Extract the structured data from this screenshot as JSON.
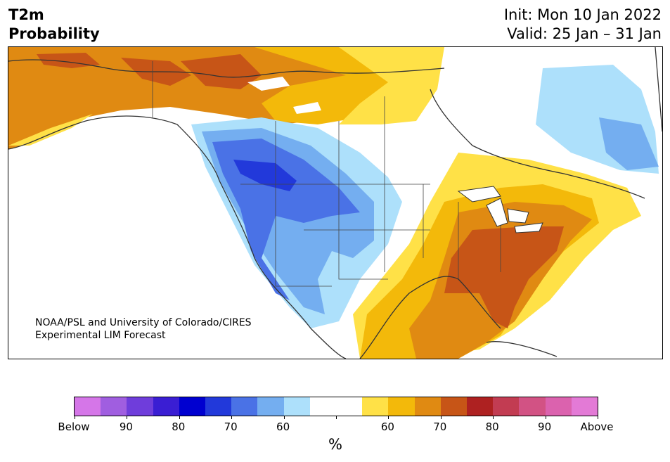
{
  "header": {
    "title_line1": "T2m",
    "title_line2": "Probability",
    "init": "Init: Mon 10 Jan 2022",
    "valid": "Valid: 25 Jan – 31 Jan"
  },
  "credit": {
    "line1": "NOAA/PSL and University of Colorado/CIRES",
    "line2": "Experimental LIM Forecast"
  },
  "colorbar": {
    "unit": "%",
    "colors": [
      "#d576e8",
      "#a05ee0",
      "#6f3ddb",
      "#3a1ed3",
      "#0000d0",
      "#2239da",
      "#4a72e6",
      "#74aef0",
      "#ade0fb",
      "#ffffff",
      "#ffffff",
      "#ffe147",
      "#f3b90a",
      "#e08a12",
      "#c75517",
      "#ae2121",
      "#c23c52",
      "#d25284",
      "#db62ae",
      "#e37ad6"
    ],
    "labels": [
      "Below",
      "90",
      "80",
      "70",
      "60",
      "60",
      "70",
      "80",
      "90",
      "Above"
    ]
  },
  "map_colors": {
    "ocean": "#ffffff",
    "land_outline": "#333333",
    "cat_below_60": "#ade0fb",
    "cat_below_70": "#74aef0",
    "cat_below_80": "#4a72e6",
    "cat_below_90": "#2239da",
    "cat_above_55": "#ffe147",
    "cat_above_60": "#f3b90a",
    "cat_above_70": "#e08a12",
    "cat_above_80": "#c75517"
  }
}
